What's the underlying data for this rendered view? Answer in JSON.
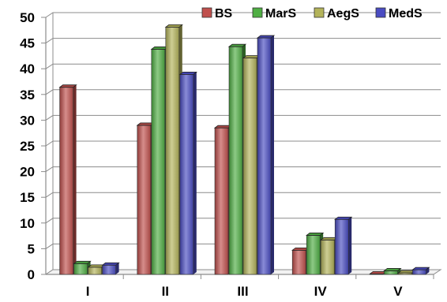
{
  "chart_data": {
    "type": "bar",
    "title": "",
    "xlabel": "",
    "ylabel": "",
    "categories": [
      "I",
      "II",
      "III",
      "IV",
      "V"
    ],
    "ylim": [
      0,
      50
    ],
    "yticks": [
      0,
      5,
      10,
      15,
      20,
      25,
      30,
      35,
      40,
      45,
      50
    ],
    "grid": true,
    "legend_position": "top-right",
    "series": [
      {
        "name": "BS",
        "color": "#c0504d",
        "values": [
          36.4,
          29.0,
          28.5,
          4.7,
          0.1
        ]
      },
      {
        "name": "MarS",
        "color": "#4fae44",
        "values": [
          2.1,
          43.8,
          44.3,
          7.6,
          0.7
        ]
      },
      {
        "name": "AegS",
        "color": "#b3b35a",
        "values": [
          1.4,
          48.1,
          42.1,
          6.7,
          0.3
        ]
      },
      {
        "name": "MedS",
        "color": "#4a4cc2",
        "values": [
          1.8,
          38.9,
          46.0,
          10.7,
          0.9
        ]
      }
    ]
  }
}
